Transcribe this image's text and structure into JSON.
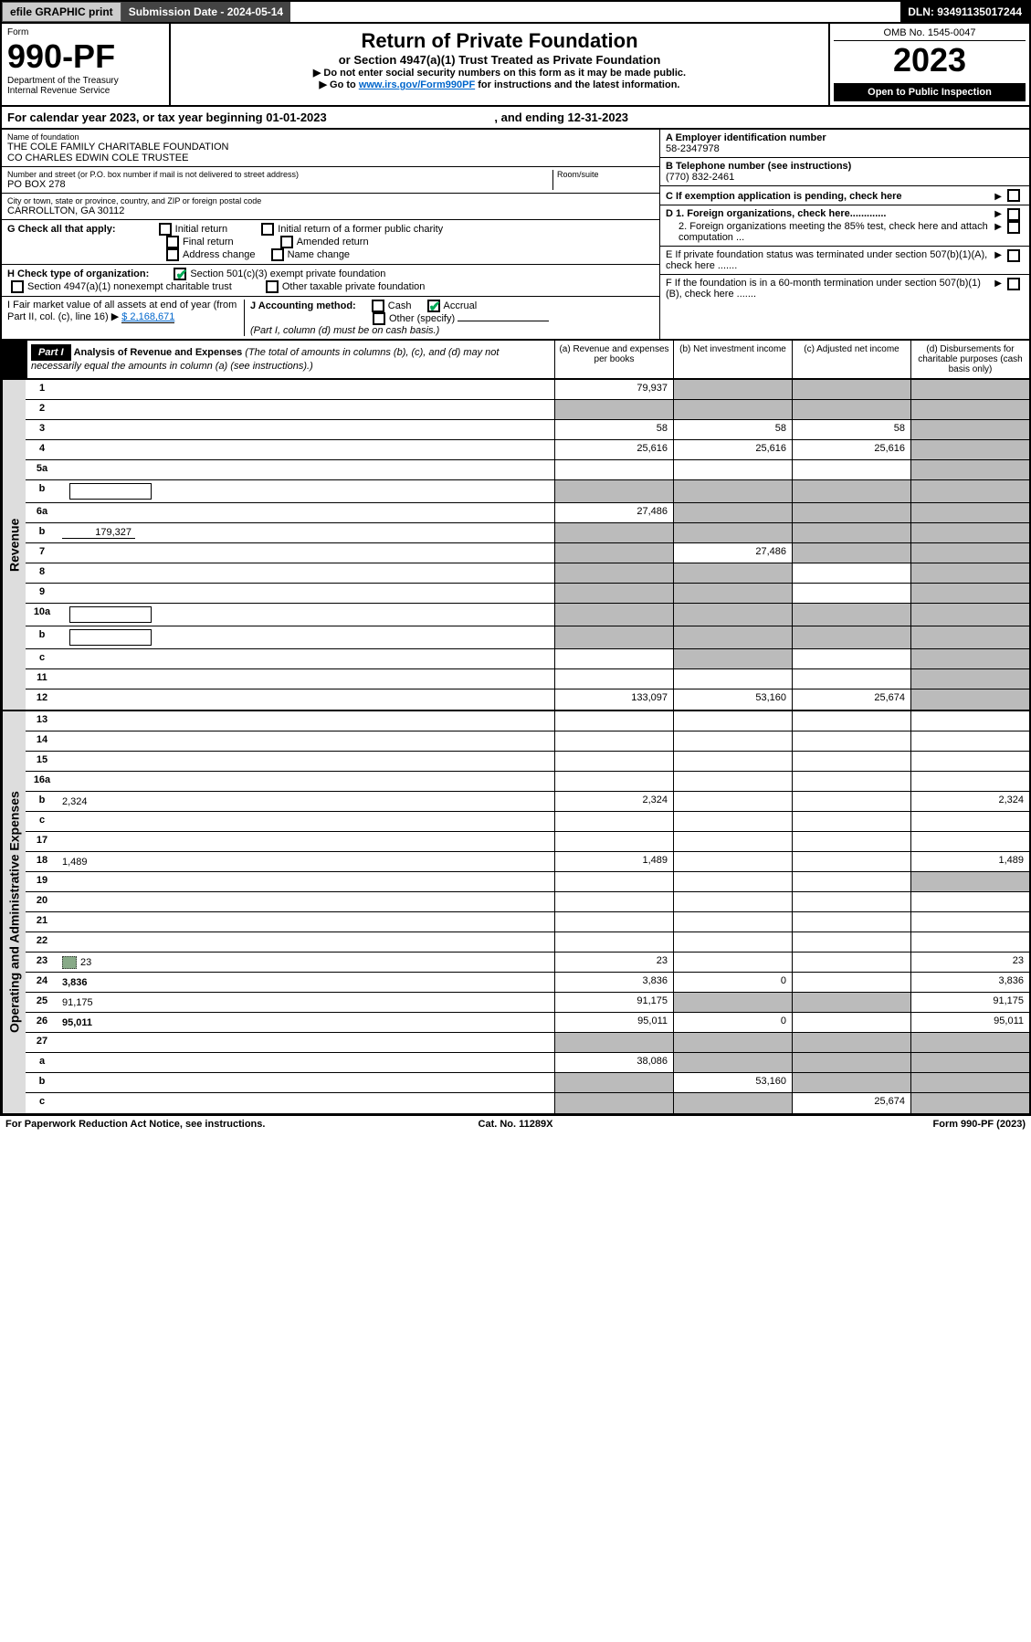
{
  "topbar": {
    "efile": "efile GRAPHIC print",
    "submission_label": "Submission Date - 2024-05-14",
    "dln": "DLN: 93491135017244"
  },
  "header": {
    "form_word": "Form",
    "form_no": "990-PF",
    "dept": "Department of the Treasury",
    "irs": "Internal Revenue Service",
    "title": "Return of Private Foundation",
    "subtitle": "or Section 4947(a)(1) Trust Treated as Private Foundation",
    "inst1": "▶ Do not enter social security numbers on this form as it may be made public.",
    "inst2_pre": "▶ Go to ",
    "inst2_link": "www.irs.gov/Form990PF",
    "inst2_post": " for instructions and the latest information.",
    "omb": "OMB No. 1545-0047",
    "year": "2023",
    "open": "Open to Public Inspection"
  },
  "calyear": {
    "pre": "For calendar year 2023, or tax year beginning ",
    "begin": "01-01-2023",
    "mid": ", and ending ",
    "end": "12-31-2023"
  },
  "foundation": {
    "name_label": "Name of foundation",
    "name1": "THE COLE FAMILY CHARITABLE FOUNDATION",
    "name2": "CO CHARLES EDWIN COLE TRUSTEE",
    "addr_label": "Number and street (or P.O. box number if mail is not delivered to street address)",
    "room_label": "Room/suite",
    "addr": "PO BOX 278",
    "city_label": "City or town, state or province, country, and ZIP or foreign postal code",
    "city": "CARROLLTON, GA  30112",
    "ein_label": "A Employer identification number",
    "ein": "58-2347978",
    "phone_label": "B Telephone number (see instructions)",
    "phone": "(770) 832-2461",
    "c_label": "C If exemption application is pending, check here",
    "d1": "D 1. Foreign organizations, check here.............",
    "d2": "2. Foreign organizations meeting the 85% test, check here and attach computation ...",
    "e": "E  If private foundation status was terminated under section 507(b)(1)(A), check here .......",
    "f": "F  If the foundation is in a 60-month termination under section 507(b)(1)(B), check here .......",
    "g_label": "G Check all that apply:",
    "g_initial": "Initial return",
    "g_initial_former": "Initial return of a former public charity",
    "g_final": "Final return",
    "g_amended": "Amended return",
    "g_addr": "Address change",
    "g_name": "Name change",
    "h_label": "H Check type of organization:",
    "h_501c3": "Section 501(c)(3) exempt private foundation",
    "h_4947": "Section 4947(a)(1) nonexempt charitable trust",
    "h_other": "Other taxable private foundation",
    "i_label": "I Fair market value of all assets at end of year (from Part II, col. (c), line 16) ▶",
    "i_val": "$  2,168,671",
    "j_label": "J Accounting method:",
    "j_cash": "Cash",
    "j_accrual": "Accrual",
    "j_other": "Other (specify)",
    "j_note": "(Part I, column (d) must be on cash basis.)"
  },
  "part1": {
    "label": "Part I",
    "title": "Analysis of Revenue and Expenses",
    "title_note": " (The total of amounts in columns (b), (c), and (d) may not necessarily equal the amounts in column (a) (see instructions).)",
    "col_a": "(a)   Revenue and expenses per books",
    "col_b": "(b)   Net investment income",
    "col_c": "(c)   Adjusted net income",
    "col_d": "(d)   Disbursements for charitable purposes (cash basis only)"
  },
  "sections": {
    "revenue": "Revenue",
    "expenses": "Operating and Administrative Expenses"
  },
  "rows": [
    {
      "n": "1",
      "d": "",
      "a": "79,937",
      "b": "",
      "c": "",
      "sh": [
        "",
        "d",
        "d",
        "d"
      ]
    },
    {
      "n": "2",
      "d": "",
      "a": "",
      "b": "",
      "c": "",
      "sh": [
        "s",
        "d",
        "d",
        "d"
      ],
      "check": true
    },
    {
      "n": "3",
      "d": "",
      "a": "58",
      "b": "58",
      "c": "58",
      "sh": [
        "",
        "",
        "",
        "d"
      ]
    },
    {
      "n": "4",
      "d": "",
      "a": "25,616",
      "b": "25,616",
      "c": "25,616",
      "sh": [
        "",
        "",
        "",
        "d"
      ]
    },
    {
      "n": "5a",
      "d": "",
      "a": "",
      "b": "",
      "c": "",
      "sh": [
        "",
        "",
        "",
        "d"
      ]
    },
    {
      "n": "b",
      "d": "",
      "a": "",
      "b": "",
      "c": "",
      "sh": [
        "s",
        "d",
        "d",
        "d"
      ],
      "box": true
    },
    {
      "n": "6a",
      "d": "",
      "a": "27,486",
      "b": "",
      "c": "",
      "sh": [
        "",
        "d",
        "d",
        "d"
      ]
    },
    {
      "n": "b",
      "d": "",
      "a": "",
      "b": "",
      "c": "",
      "sh": [
        "s",
        "d",
        "d",
        "d"
      ],
      "uval": "179,327"
    },
    {
      "n": "7",
      "d": "",
      "a": "",
      "b": "27,486",
      "c": "",
      "sh": [
        "d",
        "",
        "d",
        "d"
      ]
    },
    {
      "n": "8",
      "d": "",
      "a": "",
      "b": "",
      "c": "",
      "sh": [
        "d",
        "d",
        "",
        "d"
      ]
    },
    {
      "n": "9",
      "d": "",
      "a": "",
      "b": "",
      "c": "",
      "sh": [
        "d",
        "d",
        "",
        "d"
      ]
    },
    {
      "n": "10a",
      "d": "",
      "a": "",
      "b": "",
      "c": "",
      "sh": [
        "s",
        "d",
        "d",
        "d"
      ],
      "box": true
    },
    {
      "n": "b",
      "d": "",
      "a": "",
      "b": "",
      "c": "",
      "sh": [
        "s",
        "d",
        "d",
        "d"
      ],
      "box": true
    },
    {
      "n": "c",
      "d": "",
      "a": "",
      "b": "",
      "c": "",
      "sh": [
        "",
        "d",
        "",
        "d"
      ]
    },
    {
      "n": "11",
      "d": "",
      "a": "",
      "b": "",
      "c": "",
      "sh": [
        "",
        "",
        "",
        "d"
      ]
    },
    {
      "n": "12",
      "d": "",
      "a": "133,097",
      "b": "53,160",
      "c": "25,674",
      "sh": [
        "",
        "",
        "",
        "d"
      ],
      "bold": true
    }
  ],
  "exp_rows": [
    {
      "n": "13",
      "d": "",
      "a": "",
      "b": "",
      "c": ""
    },
    {
      "n": "14",
      "d": "",
      "a": "",
      "b": "",
      "c": ""
    },
    {
      "n": "15",
      "d": "",
      "a": "",
      "b": "",
      "c": ""
    },
    {
      "n": "16a",
      "d": "",
      "a": "",
      "b": "",
      "c": ""
    },
    {
      "n": "b",
      "d": "2,324",
      "a": "2,324",
      "b": "",
      "c": ""
    },
    {
      "n": "c",
      "d": "",
      "a": "",
      "b": "",
      "c": ""
    },
    {
      "n": "17",
      "d": "",
      "a": "",
      "b": "",
      "c": ""
    },
    {
      "n": "18",
      "d": "1,489",
      "a": "1,489",
      "b": "",
      "c": ""
    },
    {
      "n": "19",
      "d": "",
      "a": "",
      "b": "",
      "c": "",
      "sh": [
        "",
        "",
        "",
        "d"
      ]
    },
    {
      "n": "20",
      "d": "",
      "a": "",
      "b": "",
      "c": ""
    },
    {
      "n": "21",
      "d": "",
      "a": "",
      "b": "",
      "c": ""
    },
    {
      "n": "22",
      "d": "",
      "a": "",
      "b": "",
      "c": ""
    },
    {
      "n": "23",
      "d": "23",
      "a": "23",
      "b": "",
      "c": "",
      "clip": true
    },
    {
      "n": "24",
      "d": "3,836",
      "a": "3,836",
      "b": "0",
      "c": "",
      "bold": true
    },
    {
      "n": "25",
      "d": "91,175",
      "a": "91,175",
      "b": "",
      "c": "",
      "sh": [
        "",
        "d",
        "d",
        ""
      ]
    },
    {
      "n": "26",
      "d": "95,011",
      "a": "95,011",
      "b": "0",
      "c": "",
      "bold": true
    },
    {
      "n": "27",
      "d": "",
      "a": "",
      "b": "",
      "c": "",
      "sh": [
        "d",
        "d",
        "d",
        "d"
      ]
    },
    {
      "n": "a",
      "d": "",
      "a": "38,086",
      "b": "",
      "c": "",
      "bold": true,
      "sh": [
        "",
        "d",
        "d",
        "d"
      ]
    },
    {
      "n": "b",
      "d": "",
      "a": "",
      "b": "53,160",
      "c": "",
      "bold": true,
      "sh": [
        "d",
        "",
        "d",
        "d"
      ]
    },
    {
      "n": "c",
      "d": "",
      "a": "",
      "b": "",
      "c": "25,674",
      "bold": true,
      "sh": [
        "d",
        "d",
        "",
        "d"
      ]
    }
  ],
  "footer": {
    "left": "For Paperwork Reduction Act Notice, see instructions.",
    "mid": "Cat. No. 11289X",
    "right": "Form 990-PF (2023)"
  }
}
